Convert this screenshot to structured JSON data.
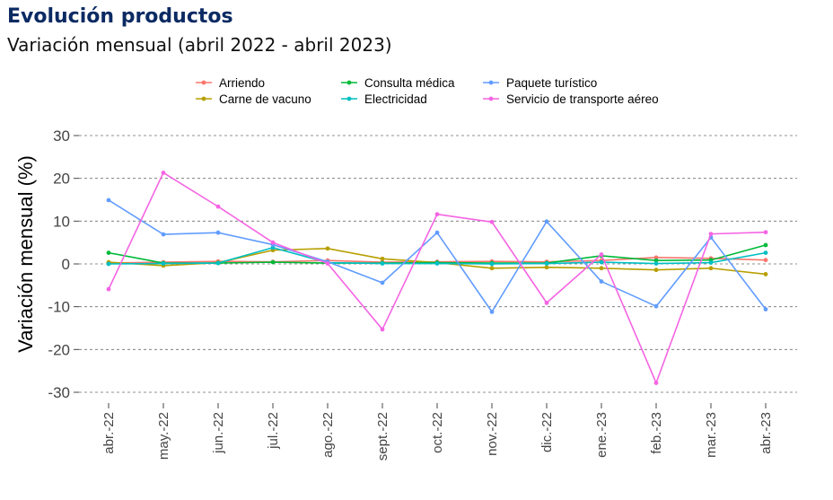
{
  "header": {
    "title": "Evolución productos",
    "subtitle": "Variación mensual (abril 2022 - abril 2023)"
  },
  "chart_data": {
    "type": "line",
    "title": "Evolución productos",
    "subtitle": "Variación mensual (abril 2022 - abril 2023)",
    "xlabel": "",
    "ylabel": "Variación mensual (%)",
    "ylim": [
      -30,
      30
    ],
    "yticks": [
      30,
      20,
      10,
      0,
      -10,
      -20,
      -30
    ],
    "grid": "horizontal dashed",
    "legend_position": "top",
    "categories": [
      "abr.-22",
      "may.-22",
      "jun.-22",
      "jul.-22",
      "ago.-22",
      "sept.-22",
      "oct.-22",
      "nov.-22",
      "dic.-22",
      "ene.-23",
      "feb.-23",
      "mar.-23",
      "abr.-23"
    ],
    "series": [
      {
        "name": "Arriendo",
        "color": "#f8766d",
        "values": [
          0.2,
          0.4,
          0.6,
          0.5,
          0.8,
          0.4,
          0.5,
          0.6,
          0.5,
          0.8,
          1.5,
          1.3,
          0.9
        ]
      },
      {
        "name": "Carne de vacuno",
        "color": "#b79f00",
        "values": [
          0.4,
          -0.4,
          0.3,
          3.2,
          3.6,
          1.2,
          0.3,
          -1.0,
          -0.8,
          -1.0,
          -1.4,
          -1.0,
          -2.4
        ]
      },
      {
        "name": "Consulta médica",
        "color": "#00ba38",
        "values": [
          2.6,
          0.2,
          0.2,
          0.4,
          0.2,
          0.2,
          0.3,
          0.2,
          0.2,
          1.9,
          0.8,
          0.9,
          4.4
        ]
      },
      {
        "name": "Electricidad",
        "color": "#00bfc4",
        "values": [
          0.0,
          0.1,
          0.2,
          3.8,
          0.3,
          0.1,
          0.1,
          0.0,
          0.1,
          0.4,
          0.1,
          0.3,
          2.6
        ]
      },
      {
        "name": "Paquete turístico",
        "color": "#619cff",
        "values": [
          14.9,
          6.9,
          7.3,
          4.5,
          0.5,
          -4.4,
          7.3,
          -11.2,
          9.9,
          -4.1,
          -9.9,
          6.2,
          -10.6
        ]
      },
      {
        "name": "Servicio de transporte aéreo",
        "color": "#f564e3",
        "values": [
          -5.9,
          21.3,
          13.4,
          5.0,
          0.1,
          -15.3,
          11.6,
          9.8,
          -9.1,
          2.2,
          -27.8,
          7.0,
          7.4
        ]
      }
    ]
  }
}
